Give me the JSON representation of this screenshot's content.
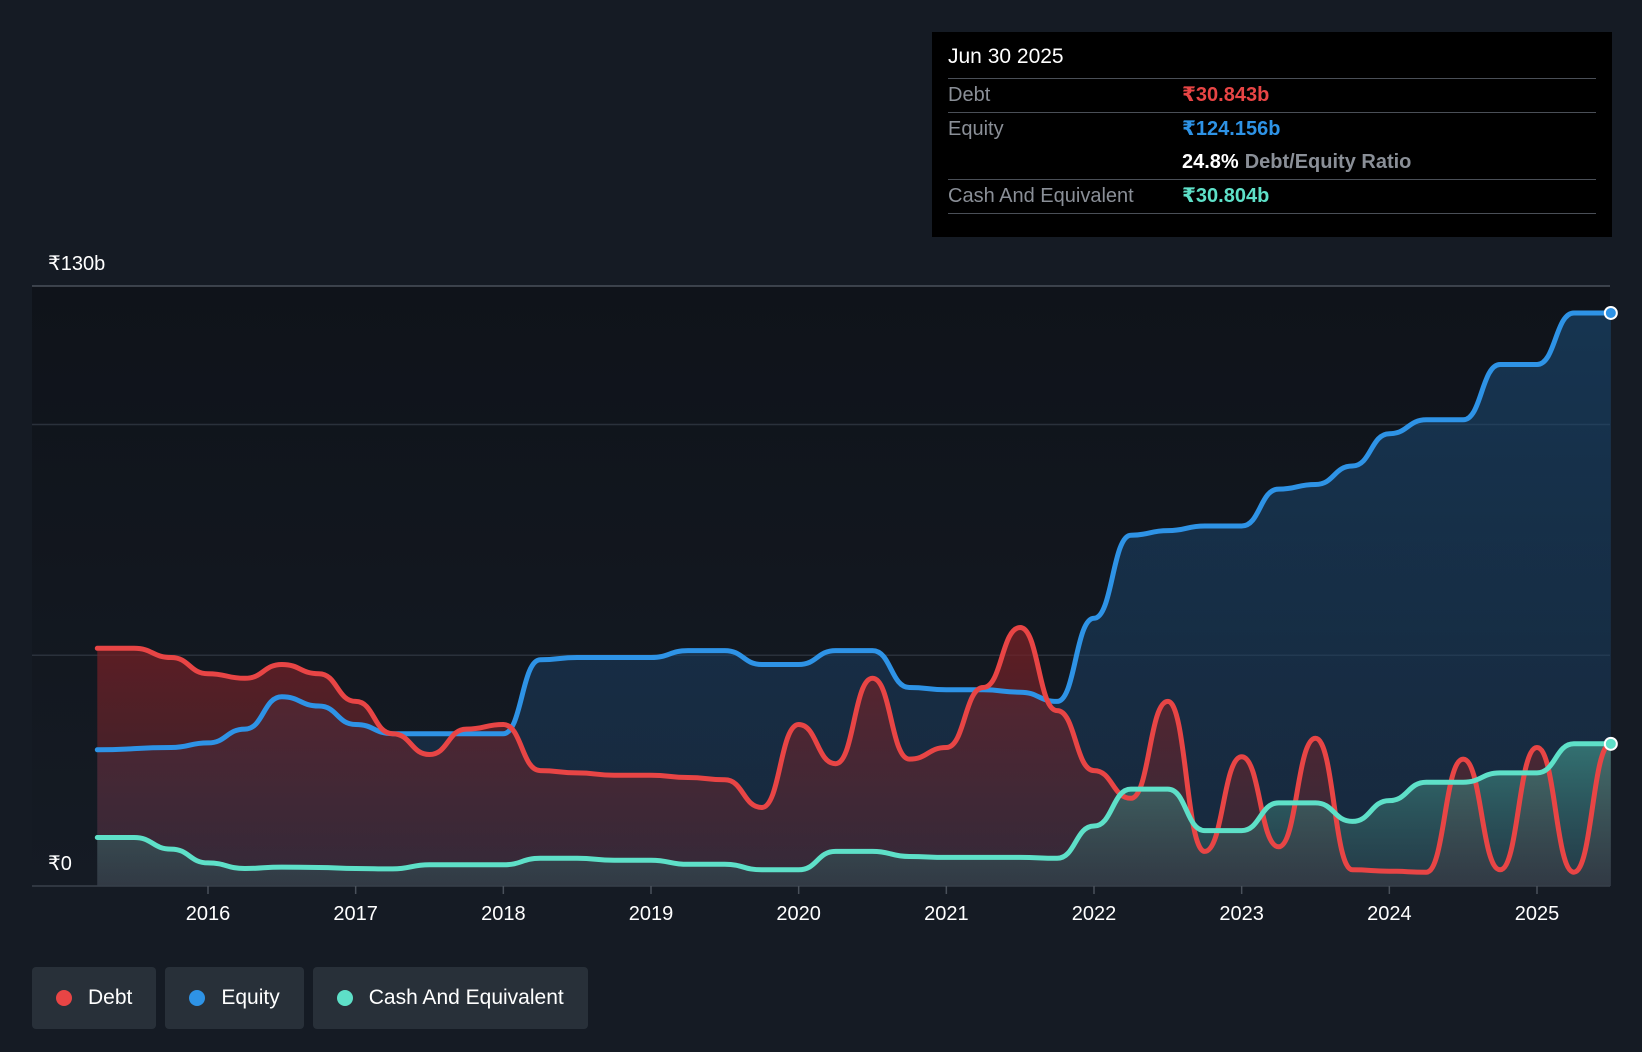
{
  "chart_data": {
    "type": "area",
    "y_axis": {
      "top_label": "₹130b",
      "bottom_label": "₹0",
      "ylim": [
        0,
        130
      ]
    },
    "x_ticks": [
      "2016",
      "2017",
      "2018",
      "2019",
      "2020",
      "2021",
      "2022",
      "2023",
      "2024",
      "2025"
    ],
    "x_range": [
      2015.25,
      2025.5
    ],
    "series": [
      {
        "name": "Debt",
        "color": "#e84545",
        "points": [
          [
            2015.25,
            51.5
          ],
          [
            2015.5,
            51.5
          ],
          [
            2015.75,
            49.5
          ],
          [
            2016,
            46
          ],
          [
            2016.25,
            45
          ],
          [
            2016.5,
            48
          ],
          [
            2016.75,
            46
          ],
          [
            2017,
            40
          ],
          [
            2017.25,
            33
          ],
          [
            2017.5,
            28.5
          ],
          [
            2017.75,
            34
          ],
          [
            2018,
            35
          ],
          [
            2018.25,
            25
          ],
          [
            2018.5,
            24.5
          ],
          [
            2018.75,
            24
          ],
          [
            2019,
            24
          ],
          [
            2019.25,
            23.5
          ],
          [
            2019.5,
            23
          ],
          [
            2019.75,
            17
          ],
          [
            2020,
            35
          ],
          [
            2020.25,
            26.5
          ],
          [
            2020.5,
            45
          ],
          [
            2020.75,
            27.5
          ],
          [
            2021,
            30
          ],
          [
            2021.25,
            43
          ],
          [
            2021.5,
            56
          ],
          [
            2021.75,
            38
          ],
          [
            2022,
            25
          ],
          [
            2022.25,
            19
          ],
          [
            2022.5,
            40
          ],
          [
            2022.75,
            7.5
          ],
          [
            2023,
            28
          ],
          [
            2023.25,
            8.5
          ],
          [
            2023.5,
            32
          ],
          [
            2023.75,
            3.5
          ],
          [
            2024,
            3.2
          ],
          [
            2024.25,
            3
          ],
          [
            2024.5,
            27.5
          ],
          [
            2024.75,
            3.5
          ],
          [
            2025,
            30
          ],
          [
            2025.25,
            3
          ],
          [
            2025.5,
            30.843
          ]
        ]
      },
      {
        "name": "Equity",
        "color": "#2e93e6",
        "points": [
          [
            2015.25,
            29.5
          ],
          [
            2015.75,
            30
          ],
          [
            2016,
            31
          ],
          [
            2016.25,
            34
          ],
          [
            2016.5,
            41
          ],
          [
            2016.75,
            39
          ],
          [
            2017,
            35
          ],
          [
            2017.25,
            33
          ],
          [
            2017.5,
            33
          ],
          [
            2017.75,
            33
          ],
          [
            2018,
            33
          ],
          [
            2018.25,
            49
          ],
          [
            2018.5,
            49.5
          ],
          [
            2018.75,
            49.5
          ],
          [
            2019,
            49.5
          ],
          [
            2019.25,
            51
          ],
          [
            2019.5,
            51
          ],
          [
            2019.75,
            48
          ],
          [
            2020,
            48
          ],
          [
            2020.25,
            51
          ],
          [
            2020.5,
            51
          ],
          [
            2020.75,
            43
          ],
          [
            2021,
            42.5
          ],
          [
            2021.25,
            42.5
          ],
          [
            2021.5,
            42
          ],
          [
            2021.75,
            40
          ],
          [
            2022,
            58
          ],
          [
            2022.25,
            76
          ],
          [
            2022.5,
            77
          ],
          [
            2022.75,
            78
          ],
          [
            2023,
            78
          ],
          [
            2023.25,
            86
          ],
          [
            2023.5,
            87
          ],
          [
            2023.75,
            91
          ],
          [
            2024,
            98
          ],
          [
            2024.25,
            101
          ],
          [
            2024.5,
            101
          ],
          [
            2024.75,
            113
          ],
          [
            2025,
            113
          ],
          [
            2025.25,
            124.156
          ],
          [
            2025.5,
            124.156
          ]
        ]
      },
      {
        "name": "Cash And Equivalent",
        "color": "#5ee0c8",
        "points": [
          [
            2015.25,
            10.5
          ],
          [
            2015.5,
            10.5
          ],
          [
            2015.75,
            8
          ],
          [
            2016,
            5
          ],
          [
            2016.25,
            3.8
          ],
          [
            2016.5,
            4.1
          ],
          [
            2016.75,
            4
          ],
          [
            2017,
            3.8
          ],
          [
            2017.25,
            3.7
          ],
          [
            2017.5,
            4.6
          ],
          [
            2017.75,
            4.6
          ],
          [
            2018,
            4.6
          ],
          [
            2018.25,
            6
          ],
          [
            2018.5,
            6
          ],
          [
            2018.75,
            5.6
          ],
          [
            2019,
            5.6
          ],
          [
            2019.25,
            4.7
          ],
          [
            2019.5,
            4.7
          ],
          [
            2019.75,
            3.5
          ],
          [
            2020,
            3.5
          ],
          [
            2020.25,
            7.5
          ],
          [
            2020.5,
            7.5
          ],
          [
            2020.75,
            6.4
          ],
          [
            2021,
            6.2
          ],
          [
            2021.25,
            6.2
          ],
          [
            2021.5,
            6.2
          ],
          [
            2021.75,
            6
          ],
          [
            2022,
            13
          ],
          [
            2022.25,
            21
          ],
          [
            2022.5,
            21
          ],
          [
            2022.75,
            12
          ],
          [
            2023,
            12
          ],
          [
            2023.25,
            18
          ],
          [
            2023.5,
            18
          ],
          [
            2023.75,
            14
          ],
          [
            2024,
            18.5
          ],
          [
            2024.25,
            22.5
          ],
          [
            2024.5,
            22.5
          ],
          [
            2024.75,
            24.5
          ],
          [
            2025,
            24.5
          ],
          [
            2025.25,
            30.804
          ],
          [
            2025.5,
            30.804
          ]
        ]
      }
    ],
    "grid": true,
    "legend_position": "bottom-left"
  },
  "tooltip": {
    "date": "Jun 30 2025",
    "debt_label": "Debt",
    "debt_value": "₹30.843b",
    "equity_label": "Equity",
    "equity_value": "₹124.156b",
    "ratio_value": "24.8%",
    "ratio_label": "Debt/Equity Ratio",
    "cash_label": "Cash And Equivalent",
    "cash_value": "₹30.804b"
  },
  "legend": {
    "items": [
      {
        "label": "Debt",
        "color": "#e84545"
      },
      {
        "label": "Equity",
        "color": "#2e93e6"
      },
      {
        "label": "Cash And Equivalent",
        "color": "#5ee0c8"
      }
    ]
  }
}
